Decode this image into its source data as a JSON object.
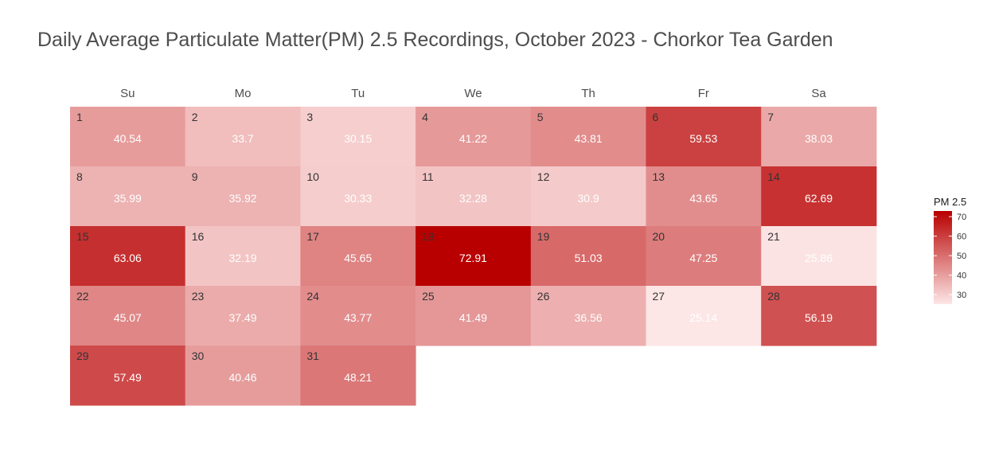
{
  "chart_data": {
    "type": "heatmap",
    "title": "Daily Average Particulate Matter(PM) 2.5 Recordings, October 2023 - Chorkor Tea Garden",
    "weekdays": [
      "Su",
      "Mo",
      "Tu",
      "We",
      "Th",
      "Fr",
      "Sa"
    ],
    "first_weekday_index": 0,
    "days": [
      {
        "day": 1,
        "value": 40.54
      },
      {
        "day": 2,
        "value": 33.7
      },
      {
        "day": 3,
        "value": 30.15
      },
      {
        "day": 4,
        "value": 41.22
      },
      {
        "day": 5,
        "value": 43.81
      },
      {
        "day": 6,
        "value": 59.53
      },
      {
        "day": 7,
        "value": 38.03
      },
      {
        "day": 8,
        "value": 35.99
      },
      {
        "day": 9,
        "value": 35.92
      },
      {
        "day": 10,
        "value": 30.33
      },
      {
        "day": 11,
        "value": 32.28
      },
      {
        "day": 12,
        "value": 30.9
      },
      {
        "day": 13,
        "value": 43.65
      },
      {
        "day": 14,
        "value": 62.69
      },
      {
        "day": 15,
        "value": 63.06
      },
      {
        "day": 16,
        "value": 32.19
      },
      {
        "day": 17,
        "value": 45.65
      },
      {
        "day": 18,
        "value": 72.91
      },
      {
        "day": 19,
        "value": 51.03
      },
      {
        "day": 20,
        "value": 47.25
      },
      {
        "day": 21,
        "value": 25.86
      },
      {
        "day": 22,
        "value": 45.07
      },
      {
        "day": 23,
        "value": 37.49
      },
      {
        "day": 24,
        "value": 43.77
      },
      {
        "day": 25,
        "value": 41.49
      },
      {
        "day": 26,
        "value": 36.56
      },
      {
        "day": 27,
        "value": 25.14
      },
      {
        "day": 28,
        "value": 56.19
      },
      {
        "day": 29,
        "value": 57.49
      },
      {
        "day": 30,
        "value": 40.46
      },
      {
        "day": 31,
        "value": 48.21
      }
    ],
    "legend": {
      "title": "PM 2.5",
      "ticks": [
        70,
        60,
        50,
        40,
        30
      ],
      "range": [
        25.14,
        72.91
      ],
      "color_low": "#fde6e6",
      "color_high": "#b80000",
      "placement": "right"
    },
    "grid": false
  }
}
